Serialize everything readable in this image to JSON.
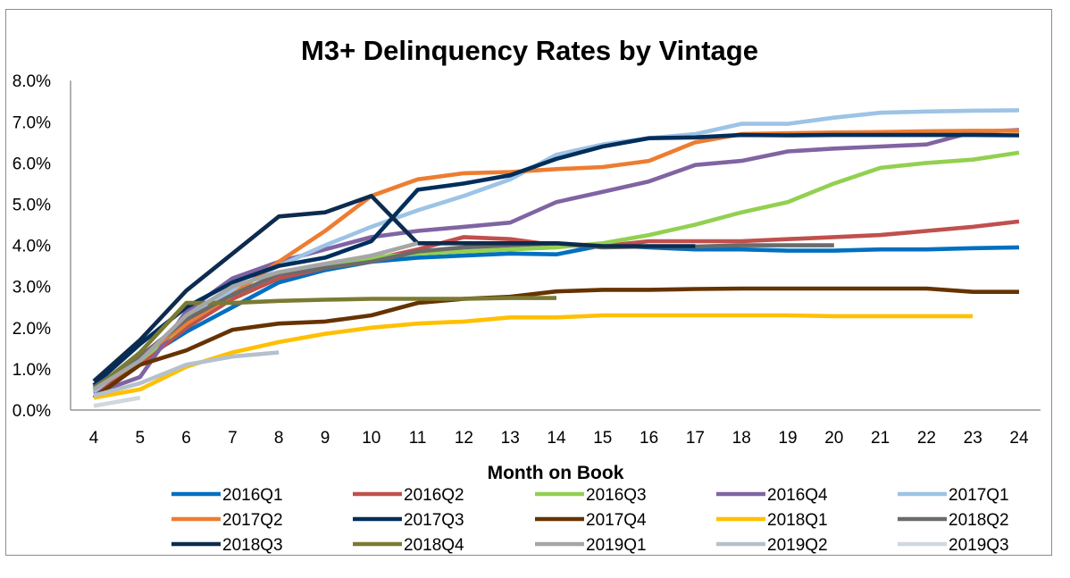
{
  "chart_data": {
    "type": "line",
    "title": "M3+ Delinquency Rates by Vintage",
    "xlabel": "Month on Book",
    "ylabel": "",
    "categories": [
      4,
      5,
      6,
      7,
      8,
      9,
      10,
      11,
      12,
      13,
      14,
      15,
      16,
      17,
      18,
      19,
      20,
      21,
      22,
      23,
      24
    ],
    "y_ticks": [
      "0.0%",
      "1.0%",
      "2.0%",
      "3.0%",
      "4.0%",
      "5.0%",
      "6.0%",
      "7.0%",
      "8.0%"
    ],
    "ylim": [
      0,
      8
    ],
    "grid": false,
    "legend_position": "bottom",
    "series": [
      {
        "name": "2016Q1",
        "color": "#0070C0",
        "values": [
          0.5,
          1.2,
          1.9,
          2.5,
          3.1,
          3.4,
          3.6,
          3.7,
          3.75,
          3.8,
          3.78,
          4.0,
          3.95,
          3.9,
          3.9,
          3.87,
          3.87,
          3.9,
          3.9,
          3.93,
          3.95
        ]
      },
      {
        "name": "2016Q2",
        "color": "#C0504D",
        "values": [
          0.45,
          1.1,
          2.0,
          2.7,
          3.2,
          3.45,
          3.65,
          3.9,
          4.2,
          4.15,
          4.0,
          3.98,
          4.1,
          4.1,
          4.1,
          4.15,
          4.2,
          4.25,
          4.35,
          4.45,
          4.58
        ]
      },
      {
        "name": "2016Q3",
        "color": "#92D050",
        "values": [
          0.5,
          1.2,
          2.1,
          2.8,
          3.3,
          3.5,
          3.7,
          3.8,
          3.85,
          3.9,
          3.95,
          4.05,
          4.25,
          4.5,
          4.8,
          5.05,
          5.5,
          5.88,
          6.0,
          6.08,
          6.25
        ]
      },
      {
        "name": "2016Q4",
        "color": "#8064A2",
        "values": [
          0.4,
          0.8,
          2.4,
          3.2,
          3.6,
          3.9,
          4.2,
          4.35,
          4.45,
          4.55,
          5.05,
          5.3,
          5.55,
          5.95,
          6.05,
          6.28,
          6.35,
          6.4,
          6.45,
          6.75,
          6.8
        ]
      },
      {
        "name": "2017Q1",
        "color": "#9DC3E6",
        "values": [
          0.45,
          1.3,
          2.2,
          2.9,
          3.5,
          4.0,
          4.45,
          4.85,
          5.2,
          5.6,
          6.2,
          6.45,
          6.6,
          6.7,
          6.95,
          6.95,
          7.1,
          7.22,
          7.25,
          7.27,
          7.28
        ]
      },
      {
        "name": "2017Q2",
        "color": "#ED7D31",
        "values": [
          0.5,
          1.3,
          2.1,
          2.8,
          3.6,
          4.35,
          5.2,
          5.6,
          5.75,
          5.78,
          5.85,
          5.9,
          6.05,
          6.5,
          6.7,
          6.72,
          6.74,
          6.75,
          6.77,
          6.78,
          6.78
        ]
      },
      {
        "name": "2017Q3",
        "color": "#002E5C",
        "values": [
          0.6,
          1.6,
          2.5,
          3.1,
          3.5,
          3.7,
          4.1,
          5.35,
          5.5,
          5.7,
          6.1,
          6.4,
          6.6,
          6.62,
          6.68,
          6.67,
          6.68,
          6.68,
          6.68,
          6.68,
          6.67
        ]
      },
      {
        "name": "2017Q4",
        "color": "#663300",
        "values": [
          0.3,
          1.1,
          1.45,
          1.95,
          2.1,
          2.15,
          2.3,
          2.6,
          2.7,
          2.75,
          2.88,
          2.92,
          2.92,
          2.94,
          2.95,
          2.95,
          2.95,
          2.95,
          2.95,
          2.87,
          2.87
        ]
      },
      {
        "name": "2018Q1",
        "color": "#FFC000",
        "values": [
          0.3,
          0.5,
          1.05,
          1.4,
          1.65,
          1.85,
          2.0,
          2.1,
          2.15,
          2.25,
          2.25,
          2.3,
          2.3,
          2.3,
          2.3,
          2.3,
          2.28,
          2.28,
          2.28,
          2.28,
          null
        ]
      },
      {
        "name": "2018Q2",
        "color": "#6B6B6B",
        "values": [
          0.55,
          1.3,
          2.2,
          2.8,
          3.3,
          3.45,
          3.6,
          3.85,
          3.95,
          4.0,
          4.05,
          3.95,
          3.97,
          3.97,
          4.0,
          4.0,
          4.0,
          null,
          null,
          null,
          null
        ]
      },
      {
        "name": "2018Q3",
        "color": "#0D2B4E",
        "values": [
          0.7,
          1.7,
          2.9,
          3.8,
          4.7,
          4.8,
          5.2,
          4.05,
          4.05,
          4.05,
          4.05,
          3.98,
          3.98,
          3.98,
          null,
          null,
          null,
          null,
          null,
          null,
          null
        ]
      },
      {
        "name": "2018Q4",
        "color": "#7A7A33",
        "values": [
          0.5,
          1.4,
          2.6,
          2.6,
          2.65,
          2.68,
          2.7,
          2.7,
          2.7,
          2.72,
          2.72,
          null,
          null,
          null,
          null,
          null,
          null,
          null,
          null,
          null,
          null
        ]
      },
      {
        "name": "2019Q1",
        "color": "#A6A6A6",
        "values": [
          0.5,
          1.2,
          2.3,
          3.0,
          3.35,
          3.55,
          3.75,
          4.05,
          null,
          null,
          null,
          null,
          null,
          null,
          null,
          null,
          null,
          null,
          null,
          null,
          null
        ]
      },
      {
        "name": "2019Q2",
        "color": "#B4C1CC",
        "values": [
          0.35,
          0.65,
          1.1,
          1.3,
          1.4,
          null,
          null,
          null,
          null,
          null,
          null,
          null,
          null,
          null,
          null,
          null,
          null,
          null,
          null,
          null,
          null
        ]
      },
      {
        "name": "2019Q3",
        "color": "#D0D7DE",
        "values": [
          0.1,
          0.3,
          null,
          null,
          null,
          null,
          null,
          null,
          null,
          null,
          null,
          null,
          null,
          null,
          null,
          null,
          null,
          null,
          null,
          null,
          null
        ]
      }
    ]
  }
}
